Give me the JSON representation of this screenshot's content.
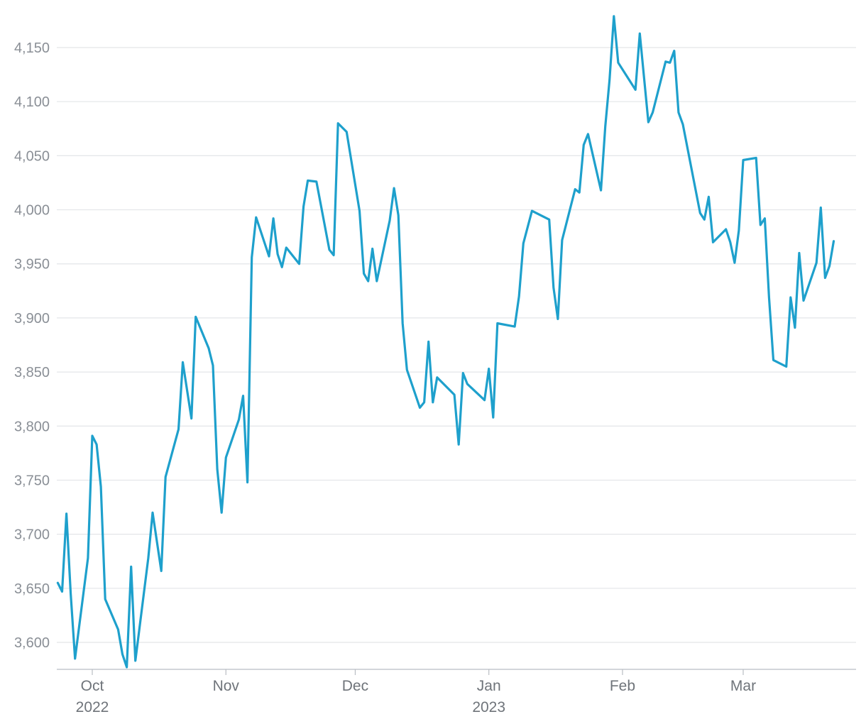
{
  "chart_data": {
    "type": "line",
    "title": "",
    "xlabel": "",
    "ylabel": "",
    "ylim": [
      3575,
      4180
    ],
    "grid": true,
    "legend": "none",
    "colors": {
      "line": "#1ea0cc",
      "grid": "#e3e5e8",
      "tick": "#8a8f96"
    },
    "yticks": [
      {
        "value": 3600,
        "label": "3,600"
      },
      {
        "value": 3650,
        "label": "3,650"
      },
      {
        "value": 3700,
        "label": "3,700"
      },
      {
        "value": 3750,
        "label": "3,750"
      },
      {
        "value": 3800,
        "label": "3,800"
      },
      {
        "value": 3850,
        "label": "3,850"
      },
      {
        "value": 3900,
        "label": "3,900"
      },
      {
        "value": 3950,
        "label": "3,950"
      },
      {
        "value": 4000,
        "label": "4,000"
      },
      {
        "value": 4050,
        "label": "4,050"
      },
      {
        "value": 4100,
        "label": "4,100"
      },
      {
        "value": 4150,
        "label": "4,150"
      }
    ],
    "xticks": [
      {
        "date": "2022-10-01",
        "label": "Oct",
        "sublabel": "2022"
      },
      {
        "date": "2022-11-01",
        "label": "Nov",
        "sublabel": ""
      },
      {
        "date": "2022-12-01",
        "label": "Dec",
        "sublabel": ""
      },
      {
        "date": "2023-01-01",
        "label": "Jan",
        "sublabel": "2023"
      },
      {
        "date": "2023-02-01",
        "label": "Feb",
        "sublabel": ""
      },
      {
        "date": "2023-03-01",
        "label": "Mar",
        "sublabel": ""
      }
    ],
    "xlim": [
      "2022-09-24",
      "2023-04-01"
    ],
    "series": [
      {
        "points": [
          [
            "2022-09-23",
            3655
          ],
          [
            "2022-09-24",
            3647
          ],
          [
            "2022-09-25",
            3719
          ],
          [
            "2022-09-26",
            3645
          ],
          [
            "2022-09-27",
            3585
          ],
          [
            "2022-09-30",
            3678
          ],
          [
            "2022-10-01",
            3791
          ],
          [
            "2022-10-02",
            3783
          ],
          [
            "2022-10-03",
            3744
          ],
          [
            "2022-10-04",
            3640
          ],
          [
            "2022-10-07",
            3612
          ],
          [
            "2022-10-08",
            3589
          ],
          [
            "2022-10-09",
            3577
          ],
          [
            "2022-10-10",
            3670
          ],
          [
            "2022-10-11",
            3583
          ],
          [
            "2022-10-14",
            3678
          ],
          [
            "2022-10-15",
            3720
          ],
          [
            "2022-10-17",
            3666
          ],
          [
            "2022-10-18",
            3753
          ],
          [
            "2022-10-21",
            3797
          ],
          [
            "2022-10-22",
            3859
          ],
          [
            "2022-10-24",
            3807
          ],
          [
            "2022-10-25",
            3901
          ],
          [
            "2022-10-28",
            3872
          ],
          [
            "2022-10-29",
            3856
          ],
          [
            "2022-10-30",
            3760
          ],
          [
            "2022-10-31",
            3720
          ],
          [
            "2022-11-01",
            3771
          ],
          [
            "2022-11-04",
            3806
          ],
          [
            "2022-11-05",
            3828
          ],
          [
            "2022-11-06",
            3748
          ],
          [
            "2022-11-07",
            3956
          ],
          [
            "2022-11-08",
            3993
          ],
          [
            "2022-11-11",
            3957
          ],
          [
            "2022-11-12",
            3992
          ],
          [
            "2022-11-13",
            3959
          ],
          [
            "2022-11-14",
            3947
          ],
          [
            "2022-11-15",
            3965
          ],
          [
            "2022-11-18",
            3950
          ],
          [
            "2022-11-19",
            4003
          ],
          [
            "2022-11-20",
            4027
          ],
          [
            "2022-11-22",
            4026
          ],
          [
            "2022-11-25",
            3963
          ],
          [
            "2022-11-26",
            3958
          ],
          [
            "2022-11-27",
            4080
          ],
          [
            "2022-11-29",
            4072
          ],
          [
            "2022-12-02",
            3999
          ],
          [
            "2022-12-03",
            3941
          ],
          [
            "2022-12-04",
            3934
          ],
          [
            "2022-12-05",
            3964
          ],
          [
            "2022-12-06",
            3934
          ],
          [
            "2022-12-09",
            3990
          ],
          [
            "2022-12-10",
            4020
          ],
          [
            "2022-12-11",
            3995
          ],
          [
            "2022-12-12",
            3895
          ],
          [
            "2022-12-13",
            3852
          ],
          [
            "2022-12-16",
            3817
          ],
          [
            "2022-12-17",
            3822
          ],
          [
            "2022-12-18",
            3878
          ],
          [
            "2022-12-19",
            3822
          ],
          [
            "2022-12-20",
            3845
          ],
          [
            "2022-12-24",
            3829
          ],
          [
            "2022-12-25",
            3783
          ],
          [
            "2022-12-26",
            3849
          ],
          [
            "2022-12-27",
            3839
          ],
          [
            "2022-12-31",
            3824
          ],
          [
            "2023-01-01",
            3853
          ],
          [
            "2023-01-02",
            3808
          ],
          [
            "2023-01-03",
            3895
          ],
          [
            "2023-01-07",
            3892
          ],
          [
            "2023-01-08",
            3920
          ],
          [
            "2023-01-09",
            3969
          ],
          [
            "2023-01-11",
            3999
          ],
          [
            "2023-01-15",
            3991
          ],
          [
            "2023-01-16",
            3928
          ],
          [
            "2023-01-17",
            3899
          ],
          [
            "2023-01-18",
            3972
          ],
          [
            "2023-01-21",
            4019
          ],
          [
            "2023-01-22",
            4016
          ],
          [
            "2023-01-23",
            4060
          ],
          [
            "2023-01-24",
            4070
          ],
          [
            "2023-01-27",
            4018
          ],
          [
            "2023-01-28",
            4077
          ],
          [
            "2023-01-29",
            4120
          ],
          [
            "2023-01-30",
            4179
          ],
          [
            "2023-01-31",
            4136
          ],
          [
            "2023-02-04",
            4111
          ],
          [
            "2023-02-05",
            4163
          ],
          [
            "2023-02-07",
            4081
          ],
          [
            "2023-02-08",
            4090
          ],
          [
            "2023-02-11",
            4137
          ],
          [
            "2023-02-12",
            4136
          ],
          [
            "2023-02-13",
            4147
          ],
          [
            "2023-02-14",
            4090
          ],
          [
            "2023-02-15",
            4079
          ],
          [
            "2023-02-19",
            3997
          ],
          [
            "2023-02-20",
            3991
          ],
          [
            "2023-02-21",
            4012
          ],
          [
            "2023-02-22",
            3970
          ],
          [
            "2023-02-25",
            3982
          ],
          [
            "2023-02-26",
            3970
          ],
          [
            "2023-02-27",
            3951
          ],
          [
            "2023-02-28",
            3981
          ],
          [
            "2023-03-01",
            4046
          ],
          [
            "2023-03-04",
            4048
          ],
          [
            "2023-03-05",
            3986
          ],
          [
            "2023-03-06",
            3992
          ],
          [
            "2023-03-07",
            3919
          ],
          [
            "2023-03-08",
            3861
          ],
          [
            "2023-03-11",
            3855
          ],
          [
            "2023-03-12",
            3919
          ],
          [
            "2023-03-13",
            3891
          ],
          [
            "2023-03-14",
            3960
          ],
          [
            "2023-03-15",
            3916
          ],
          [
            "2023-03-18",
            3951
          ],
          [
            "2023-03-19",
            4002
          ],
          [
            "2023-03-20",
            3937
          ],
          [
            "2023-03-21",
            3948
          ],
          [
            "2023-03-22",
            3971
          ]
        ]
      }
    ]
  }
}
